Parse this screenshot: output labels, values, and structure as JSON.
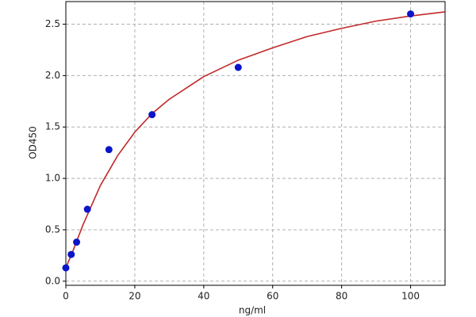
{
  "chart_data": {
    "type": "scatter",
    "x_label": "ng/ml",
    "y_label": "OD450",
    "xlim": [
      0,
      110
    ],
    "ylim": [
      -0.04,
      2.72
    ],
    "xticks": [
      0,
      20,
      40,
      60,
      80,
      100
    ],
    "yticks": [
      {
        "value": 0.0,
        "label": "0.0"
      },
      0.5,
      {
        "value": 1.0,
        "label": "1.0"
      },
      1.5,
      {
        "value": 2.0,
        "label": "2.0"
      },
      2.5
    ],
    "grid": true,
    "series": [
      {
        "type": "line",
        "color": "#c0282a",
        "x": [
          0,
          2,
          5,
          10,
          15,
          20,
          25,
          30,
          40,
          50,
          60,
          70,
          80,
          90,
          100,
          110
        ],
        "values": [
          0.13,
          0.29,
          0.55,
          0.93,
          1.22,
          1.45,
          1.63,
          1.77,
          1.99,
          2.15,
          2.27,
          2.38,
          2.46,
          2.53,
          2.58,
          2.62
        ]
      },
      {
        "type": "scatter",
        "color": "#0a14c8",
        "x": [
          0,
          1.56,
          3.12,
          6.25,
          12.5,
          25,
          50,
          100
        ],
        "values": [
          0.13,
          0.26,
          0.38,
          0.7,
          1.28,
          1.62,
          2.08,
          2.6
        ]
      }
    ]
  }
}
